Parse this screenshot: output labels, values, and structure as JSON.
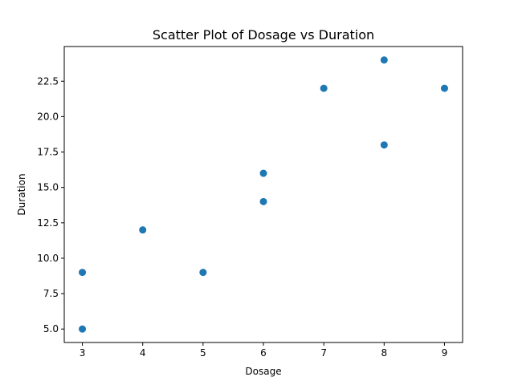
{
  "chart_data": {
    "type": "scatter",
    "title": "Scatter Plot of Dosage vs Duration",
    "xlabel": "Dosage",
    "ylabel": "Duration",
    "xlim": [
      2.7,
      9.3
    ],
    "ylim": [
      4.05,
      24.95
    ],
    "xticks": [
      3,
      4,
      5,
      6,
      7,
      8,
      9
    ],
    "xtick_labels": [
      "3",
      "4",
      "5",
      "6",
      "7",
      "8",
      "9"
    ],
    "yticks": [
      5.0,
      7.5,
      10.0,
      12.5,
      15.0,
      17.5,
      20.0,
      22.5
    ],
    "ytick_labels": [
      "5.0",
      "7.5",
      "10.0",
      "12.5",
      "15.0",
      "17.5",
      "20.0",
      "22.5"
    ],
    "grid": false,
    "point_color": "#1f77b4",
    "points": [
      {
        "x": 3,
        "y": 5
      },
      {
        "x": 3,
        "y": 9
      },
      {
        "x": 4,
        "y": 12
      },
      {
        "x": 5,
        "y": 9
      },
      {
        "x": 6,
        "y": 14
      },
      {
        "x": 6,
        "y": 16
      },
      {
        "x": 7,
        "y": 22
      },
      {
        "x": 8,
        "y": 18
      },
      {
        "x": 8,
        "y": 24
      },
      {
        "x": 9,
        "y": 22
      }
    ]
  }
}
